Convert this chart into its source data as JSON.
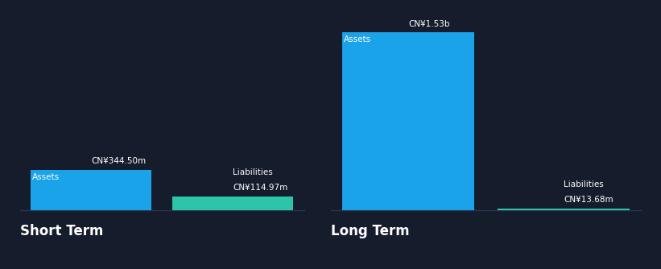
{
  "background_color": "#151c2c",
  "short_term": {
    "assets_value": 344.5,
    "liabilities_value": 114.97,
    "assets_label": "CN¥344.50m",
    "liabilities_label": "CN¥114.97m",
    "assets_text": "Assets",
    "liabilities_text": "Liabilities",
    "section_label": "Short Term"
  },
  "long_term": {
    "assets_value": 1530.0,
    "liabilities_value": 13.68,
    "assets_label": "CN¥1.53b",
    "liabilities_label": "CN¥13.68m",
    "assets_text": "Assets",
    "liabilities_text": "Liabilities",
    "section_label": "Long Term"
  },
  "assets_color": "#1aa3e8",
  "liabilities_color": "#2ec4a9",
  "text_color": "#ffffff",
  "label_fontsize": 7.5,
  "section_fontsize": 12,
  "inside_label_fontsize": 7.5
}
